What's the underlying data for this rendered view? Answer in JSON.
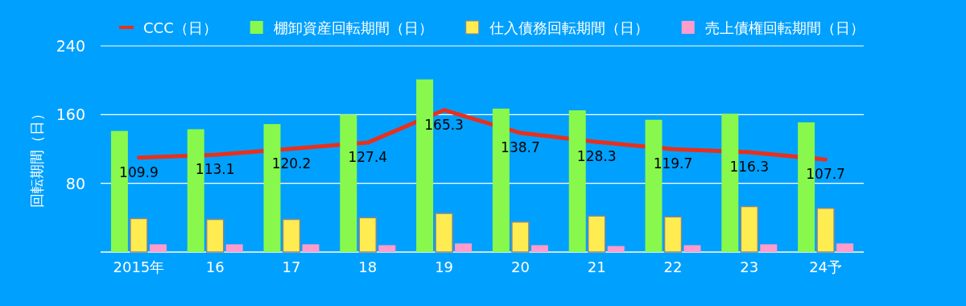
{
  "chart_data": {
    "type": "bar",
    "ylabel": "回転期間（日）",
    "categories": [
      "2015年",
      "16",
      "17",
      "18",
      "19",
      "20",
      "21",
      "22",
      "23",
      "24予"
    ],
    "series": [
      {
        "name": "CCC（日）",
        "type": "line",
        "color": "#e8301c",
        "values": [
          109.9,
          113.1,
          120.2,
          127.4,
          165.3,
          138.7,
          128.3,
          119.7,
          116.3,
          107.7
        ],
        "value_labels": [
          "109.9",
          "113.1",
          "120.2",
          "127.4",
          "165.3",
          "138.7",
          "128.3",
          "119.7",
          "116.3",
          "107.7"
        ]
      },
      {
        "name": "棚卸資産回転期間（日）",
        "color": "#88f84c",
        "values": [
          141,
          143,
          149,
          160,
          201,
          167,
          165,
          154,
          161,
          151
        ]
      },
      {
        "name": "仕入債務回転期間（日）",
        "color": "#ffec50",
        "values": [
          39,
          38,
          38,
          40,
          45,
          35,
          42,
          41,
          53,
          51
        ]
      },
      {
        "name": "売上債権回転期間（日）",
        "color": "#ff9ccc",
        "values": [
          9,
          9,
          9,
          8,
          10,
          8,
          7,
          8,
          9,
          10
        ]
      }
    ],
    "ylim": [
      0,
      240
    ],
    "yticks": [
      {
        "value": 0,
        "label": null
      },
      80,
      160,
      240
    ],
    "grid": "y",
    "legend": "top"
  }
}
